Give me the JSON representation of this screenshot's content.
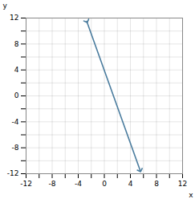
{
  "chart_data": {
    "type": "line",
    "xlabel": "x",
    "ylabel": "y",
    "x": [
      -2.7,
      5.5
    ],
    "values": [
      11.5,
      -11.5
    ],
    "color": "#4a7c9e",
    "marker": "arrow",
    "xlim": [
      -12,
      12
    ],
    "ylim": [
      -12,
      12
    ],
    "xticks": [
      -12,
      {
        "value": -10,
        "label": null
      },
      -8,
      {
        "value": -6,
        "label": null
      },
      -4,
      {
        "value": -2,
        "label": null
      },
      0,
      {
        "value": 2,
        "label": null
      },
      4,
      {
        "value": 6,
        "label": null
      },
      8,
      {
        "value": 10,
        "label": null
      },
      12
    ],
    "yticks": [
      -12,
      {
        "value": -10,
        "label": null
      },
      -8,
      {
        "value": -6,
        "label": null
      },
      -4,
      {
        "value": -2,
        "label": null
      },
      0,
      {
        "value": 2,
        "label": null
      },
      4,
      {
        "value": 6,
        "label": null
      },
      8,
      {
        "value": 10,
        "label": null
      },
      12
    ],
    "grid": true
  }
}
